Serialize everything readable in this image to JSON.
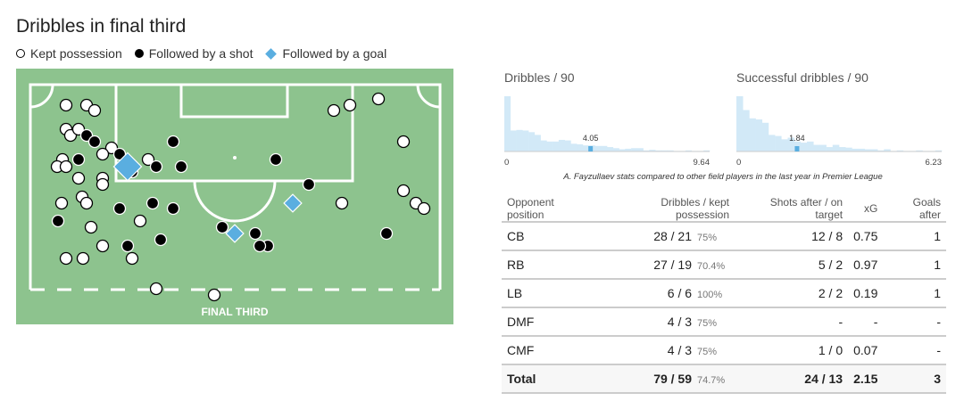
{
  "title": "Dribbles in final third",
  "legend": {
    "kept": "Kept possession",
    "shot": "Followed by a shot",
    "goal": "Followed by a goal"
  },
  "pitch_label": "FINAL THIRD",
  "colors": {
    "pitch": "#8dc38e",
    "goal_marker": "#5aaee0",
    "hist_bar": "#d2e9f7",
    "hist_highlight": "#5aaee0"
  },
  "chart_data": [
    {
      "type": "bar",
      "title": "Dribbles / 90",
      "xlim": [
        0,
        9.64
      ],
      "tick_labels": [
        "0",
        "9.64"
      ],
      "player_value": 4.05,
      "player_label": "4.05",
      "relative_counts": [
        1.0,
        0.38,
        0.39,
        0.38,
        0.35,
        0.3,
        0.2,
        0.18,
        0.18,
        0.21,
        0.2,
        0.14,
        0.13,
        0.11,
        0.11,
        0.1,
        0.1,
        0.08,
        0.06,
        0.04,
        0.05,
        0.06,
        0.06,
        0.02,
        0.03,
        0.02,
        0.02,
        0.02,
        0.01,
        0.01,
        0.02,
        0.01,
        0.01,
        0.02
      ]
    },
    {
      "type": "bar",
      "title": "Successful dribbles / 90",
      "xlim": [
        0,
        6.23
      ],
      "tick_labels": [
        "0",
        "6.23"
      ],
      "player_value": 1.84,
      "player_label": "1.84",
      "relative_counts": [
        1.0,
        0.75,
        0.6,
        0.58,
        0.52,
        0.3,
        0.28,
        0.22,
        0.25,
        0.18,
        0.16,
        0.18,
        0.12,
        0.12,
        0.08,
        0.12,
        0.08,
        0.07,
        0.05,
        0.05,
        0.04,
        0.04,
        0.02,
        0.04,
        0.01,
        0.02,
        0.01,
        0.01,
        0.02,
        0.01,
        0.01,
        0.02
      ]
    }
  ],
  "comparison_note": "A. Fayzullaev stats compared to other field players in the last year in Premier League",
  "table": {
    "headers": [
      "Opponent position",
      "Dribbles / kept possession",
      "Shots after / on target",
      "xG",
      "Goals after"
    ],
    "rows": [
      {
        "pos": "CB",
        "drib": "28 / 21",
        "pct": "75%",
        "shots": "12 / 8",
        "xg": "0.75",
        "goals": "1"
      },
      {
        "pos": "RB",
        "drib": "27 / 19",
        "pct": "70.4%",
        "shots": "5 / 2",
        "xg": "0.97",
        "goals": "1"
      },
      {
        "pos": "LB",
        "drib": "6 / 6",
        "pct": "100%",
        "shots": "2 / 2",
        "xg": "0.19",
        "goals": "1"
      },
      {
        "pos": "DMF",
        "drib": "4 / 3",
        "pct": "75%",
        "shots": "-",
        "xg": "-",
        "goals": "-"
      },
      {
        "pos": "CMF",
        "drib": "4 / 3",
        "pct": "75%",
        "shots": "1 / 0",
        "xg": "0.07",
        "goals": "-"
      }
    ],
    "total": {
      "pos": "Total",
      "drib": "79 / 59",
      "pct": "74.7%",
      "shots": "24 / 13",
      "xg": "2.15",
      "goals": "3"
    }
  }
}
